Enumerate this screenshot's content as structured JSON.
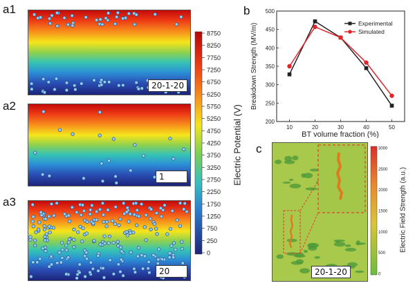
{
  "panels": {
    "a1": {
      "letter": "a1",
      "tag": "20-1-20"
    },
    "a2": {
      "letter": "a2",
      "tag": "1"
    },
    "a3": {
      "letter": "a3",
      "tag": "20"
    },
    "b": {
      "letter": "b"
    },
    "c": {
      "letter": "c",
      "tag": "20-1-20"
    }
  },
  "colorbar_a": {
    "label": "Electric Potential (V)",
    "ticks": [
      "8750",
      "8250",
      "7750",
      "7250",
      "6750",
      "6250",
      "5750",
      "5250",
      "4750",
      "4250",
      "3750",
      "3250",
      "2750",
      "2250",
      "1750",
      "1250",
      "750",
      "250",
      "0"
    ]
  },
  "colorbar_c": {
    "label": "Electric Field Strength (a.u.)",
    "ticks": [
      "3000",
      "2500",
      "2000",
      "1500",
      "1000",
      "500",
      "0"
    ]
  },
  "chart_data": {
    "type": "line",
    "title": "",
    "xlabel": "BT volume fraction (%)",
    "ylabel": "Breakdown Strength (MV/m)",
    "x": [
      10,
      20,
      30,
      40,
      50
    ],
    "xlim": [
      5,
      55
    ],
    "ylim": [
      200,
      500
    ],
    "xticks": [
      "10",
      "20",
      "30",
      "40",
      "50"
    ],
    "yticks": [
      "200",
      "250",
      "300",
      "350",
      "400",
      "450",
      "500"
    ],
    "series": [
      {
        "name": "Experimental",
        "color": "#222222",
        "marker": "square",
        "values": [
          328,
          472,
          428,
          345,
          243
        ]
      },
      {
        "name": "Simulated",
        "color": "#e0252b",
        "marker": "circle",
        "values": [
          350,
          457,
          428,
          360,
          270
        ]
      }
    ],
    "legend": "top-right"
  }
}
